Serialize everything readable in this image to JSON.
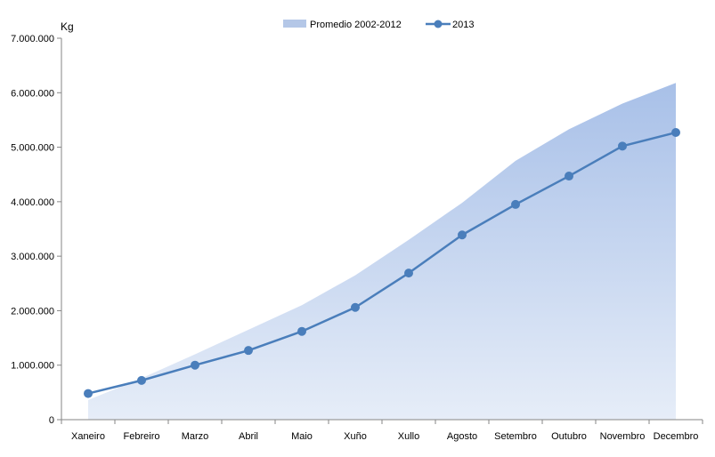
{
  "chart_data": {
    "type": "line",
    "title": "",
    "ylabel": "Kg",
    "xlabel": "",
    "categories": [
      "Xaneiro",
      "Febreiro",
      "Marzo",
      "Abril",
      "Maio",
      "Xuño",
      "Xullo",
      "Agosto",
      "Setembro",
      "Outubro",
      "Novembro",
      "Decembro"
    ],
    "ylim": [
      0,
      7000000
    ],
    "yticks": [
      0,
      1000000,
      2000000,
      3000000,
      4000000,
      5000000,
      6000000,
      7000000
    ],
    "ytick_labels": [
      "0",
      "1.000.000",
      "2.000.000",
      "3.000.000",
      "4.000.000",
      "5.000.000",
      "6.000.000",
      "7.000.000"
    ],
    "grid": false,
    "legend_position": "top-center",
    "series": [
      {
        "name": "Promedio 2002-2012",
        "kind": "area",
        "color": "#b4c7e7",
        "values": [
          360000,
          760000,
          1200000,
          1650000,
          2100000,
          2650000,
          3300000,
          3980000,
          4750000,
          5330000,
          5800000,
          6180000
        ]
      },
      {
        "name": "2013",
        "kind": "line",
        "color": "#4a7ebb",
        "values": [
          480000,
          720000,
          1000000,
          1270000,
          1620000,
          2060000,
          2690000,
          3390000,
          3950000,
          4470000,
          5020000,
          5270000
        ]
      }
    ]
  }
}
